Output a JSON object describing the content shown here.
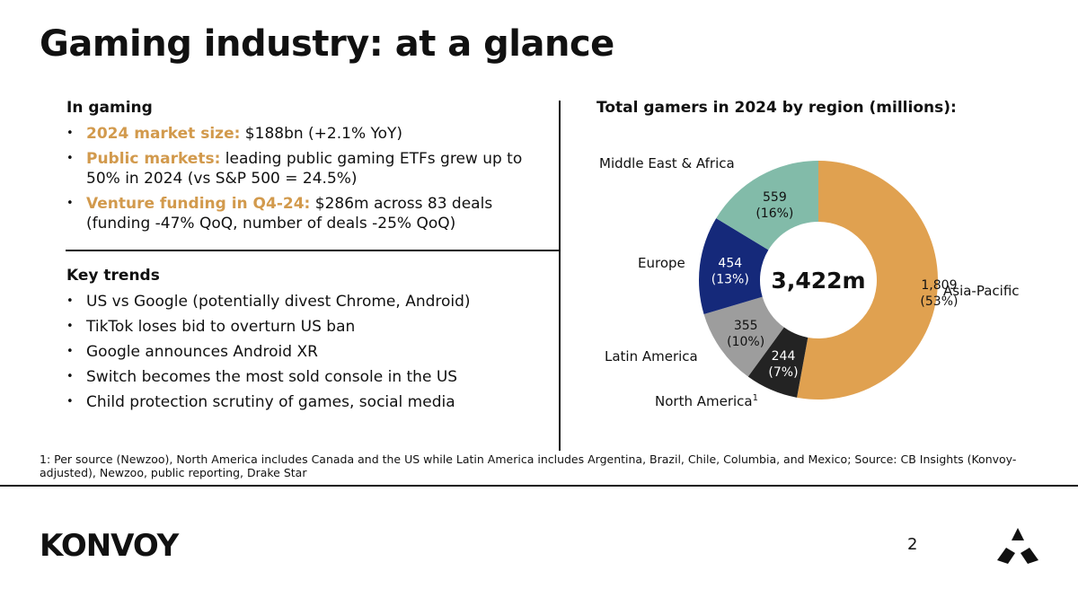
{
  "title": "Gaming industry: at a glance",
  "colors": {
    "accent": "#D29A4D",
    "asia_pacific": "#E0A150",
    "middle_east_africa": "#82BBA9",
    "europe": "#15297A",
    "latin_america": "#9D9D9D",
    "north_america": "#232323"
  },
  "in_gaming": {
    "heading": "In gaming",
    "items": [
      {
        "label": "2024 market size:",
        "text": " $188bn (+2.1% YoY)"
      },
      {
        "label": "Public markets:",
        "text": " leading public gaming ETFs grew up to 50% in 2024 (vs S&P 500 = 24.5%)"
      },
      {
        "label": "Venture funding in Q4-24:",
        "text": " $286m across 83 deals (funding -47% QoQ, number of deals -25% QoQ)"
      }
    ]
  },
  "key_trends": {
    "heading": "Key trends",
    "items": [
      "US vs Google (potentially divest Chrome, Android)",
      "TikTok loses bid to overturn US ban",
      "Google announces Android XR",
      "Switch becomes the most sold console in the US",
      "Child protection scrutiny of games, social media"
    ]
  },
  "chart_data": {
    "type": "pie",
    "title": "Total gamers in 2024 by region (millions):",
    "center_label": "3,422m",
    "slices": [
      {
        "name": "Asia-Pacific",
        "value": 1809,
        "value_label": "1,809",
        "pct_label": "(53%)"
      },
      {
        "name": "North America",
        "value": 244,
        "value_label": "244",
        "pct_label": "(7%)",
        "footnote_marker": "1"
      },
      {
        "name": "Latin America",
        "value": 355,
        "value_label": "355",
        "pct_label": "(10%)"
      },
      {
        "name": "Europe",
        "value": 454,
        "value_label": "454",
        "pct_label": "(13%)"
      },
      {
        "name": "Middle East & Africa",
        "value": 559,
        "value_label": "559",
        "pct_label": "(16%)"
      }
    ]
  },
  "footnote": "1: Per source (Newzoo), North America includes Canada and the US while Latin America includes Argentina, Brazil, Chile, Columbia, and Mexico; Source: CB Insights (Konvoy-adjusted), Newzoo, public reporting, Drake Star",
  "footer": {
    "logo": "KONVOY",
    "page_number": "2"
  }
}
